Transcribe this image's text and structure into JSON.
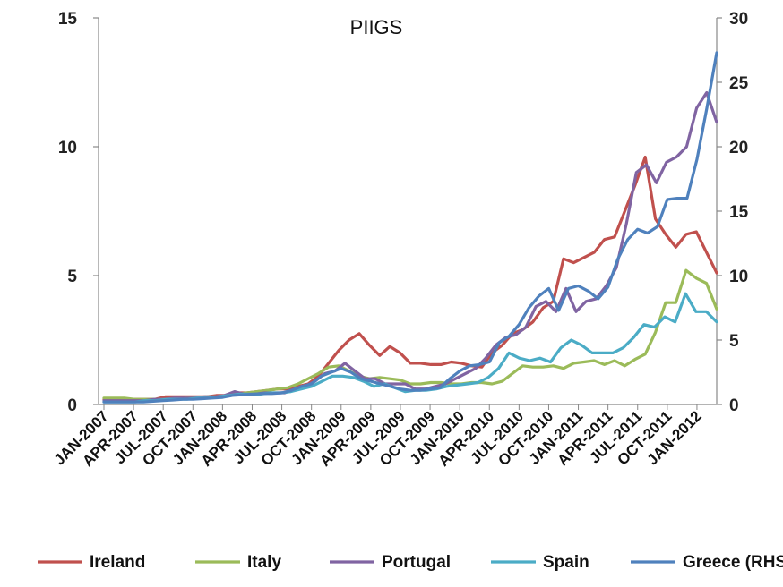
{
  "chart_data": {
    "type": "line",
    "title": "PIIGS",
    "left_axis": {
      "ylim": [
        0,
        15
      ],
      "ticks": [
        0,
        5,
        10,
        15
      ]
    },
    "right_axis": {
      "ylim": [
        0,
        30
      ],
      "ticks": [
        0,
        5,
        10,
        15,
        20,
        25,
        30
      ]
    },
    "x_tick_labels": [
      "JAN-2007",
      "APR-2007",
      "JUL-2007",
      "OCT-2007",
      "JAN-2008",
      "APR-2008",
      "JUL-2008",
      "OCT-2008",
      "JAN-2009",
      "APR-2009",
      "JUL-2009",
      "OCT-2009",
      "JAN-2010",
      "APR-2010",
      "JUL-2010",
      "OCT-2010",
      "JAN-2011",
      "APR-2011",
      "JUL-2011",
      "OCT-2011",
      "JAN-2012"
    ],
    "grid": false,
    "legend_position": "bottom",
    "series": [
      {
        "name": "Ireland",
        "color": "#c0504d",
        "axis": "left",
        "values": [
          0.2,
          0.2,
          0.2,
          0.2,
          0.2,
          0.2,
          0.3,
          0.3,
          0.3,
          0.3,
          0.3,
          0.35,
          0.35,
          0.45,
          0.45,
          0.5,
          0.55,
          0.6,
          0.6,
          0.7,
          0.8,
          1.1,
          1.6,
          2.1,
          2.5,
          2.75,
          2.3,
          1.9,
          2.25,
          2.0,
          1.6,
          1.6,
          1.55,
          1.55,
          1.65,
          1.6,
          1.5,
          1.45,
          2.0,
          2.3,
          2.75,
          2.9,
          3.2,
          3.75,
          4.0,
          5.65,
          5.5,
          5.7,
          5.9,
          6.4,
          6.5,
          7.5,
          8.5,
          9.6,
          7.2,
          6.6,
          6.1,
          6.6,
          6.7,
          5.9,
          5.1
        ]
      },
      {
        "name": "Italy",
        "color": "#9bbb59",
        "axis": "left",
        "values": [
          0.25,
          0.25,
          0.25,
          0.2,
          0.2,
          0.2,
          0.2,
          0.2,
          0.25,
          0.25,
          0.3,
          0.3,
          0.35,
          0.4,
          0.45,
          0.5,
          0.55,
          0.6,
          0.65,
          0.8,
          1.0,
          1.2,
          1.45,
          1.5,
          1.3,
          1.1,
          1.0,
          1.05,
          1.0,
          0.95,
          0.8,
          0.8,
          0.85,
          0.85,
          0.8,
          0.8,
          0.85,
          0.85,
          0.8,
          0.9,
          1.2,
          1.5,
          1.45,
          1.45,
          1.5,
          1.4,
          1.6,
          1.65,
          1.7,
          1.55,
          1.7,
          1.5,
          1.75,
          1.95,
          2.8,
          3.95,
          3.95,
          5.2,
          4.9,
          4.7,
          3.7
        ]
      },
      {
        "name": "Portugal",
        "color": "#8064a2",
        "axis": "left",
        "values": [
          0.15,
          0.15,
          0.15,
          0.15,
          0.15,
          0.2,
          0.2,
          0.25,
          0.25,
          0.25,
          0.3,
          0.3,
          0.35,
          0.5,
          0.4,
          0.4,
          0.45,
          0.45,
          0.45,
          0.6,
          0.7,
          0.9,
          1.2,
          1.3,
          1.6,
          1.3,
          1.0,
          1.0,
          0.8,
          0.8,
          0.8,
          0.6,
          0.6,
          0.7,
          0.8,
          1.0,
          1.2,
          1.4,
          1.8,
          2.3,
          2.6,
          2.7,
          3.0,
          3.8,
          4.0,
          3.6,
          4.5,
          3.6,
          4.0,
          4.1,
          4.6,
          5.3,
          7.0,
          9.0,
          9.3,
          8.6,
          9.4,
          9.6,
          10.0,
          11.5,
          12.1,
          10.95
        ]
      },
      {
        "name": "Spain",
        "color": "#4bacc6",
        "axis": "left",
        "values": [
          0.1,
          0.1,
          0.1,
          0.1,
          0.15,
          0.15,
          0.2,
          0.2,
          0.2,
          0.25,
          0.25,
          0.3,
          0.35,
          0.4,
          0.4,
          0.4,
          0.45,
          0.45,
          0.5,
          0.6,
          0.7,
          0.9,
          1.1,
          1.1,
          1.05,
          0.9,
          0.7,
          0.8,
          0.65,
          0.5,
          0.55,
          0.55,
          0.6,
          0.7,
          0.75,
          0.8,
          0.85,
          1.05,
          1.4,
          2.0,
          1.8,
          1.7,
          1.8,
          1.65,
          2.2,
          2.5,
          2.3,
          2.0,
          2.0,
          2.0,
          2.2,
          2.6,
          3.1,
          3.0,
          3.4,
          3.2,
          4.3,
          3.6,
          3.6,
          3.2
        ]
      },
      {
        "name": "Greece (RHS)",
        "color": "#4f81bd",
        "axis": "right",
        "values": [
          0.2,
          0.2,
          0.2,
          0.2,
          0.2,
          0.25,
          0.3,
          0.35,
          0.4,
          0.4,
          0.45,
          0.5,
          0.55,
          0.7,
          0.75,
          0.8,
          0.85,
          0.85,
          0.9,
          1.1,
          1.4,
          1.6,
          2.2,
          2.5,
          2.8,
          2.5,
          2.0,
          1.8,
          1.6,
          1.4,
          1.2,
          1.1,
          1.1,
          1.2,
          1.3,
          2.0,
          2.6,
          3.0,
          3.1,
          3.3,
          4.8,
          5.3,
          6.2,
          7.5,
          8.4,
          9.0,
          7.3,
          9.0,
          9.2,
          8.8,
          8.2,
          9.1,
          11.3,
          12.8,
          13.6,
          13.3,
          13.8,
          15.9,
          16.0,
          16.0,
          19.0,
          23.0,
          27.3
        ]
      }
    ]
  }
}
